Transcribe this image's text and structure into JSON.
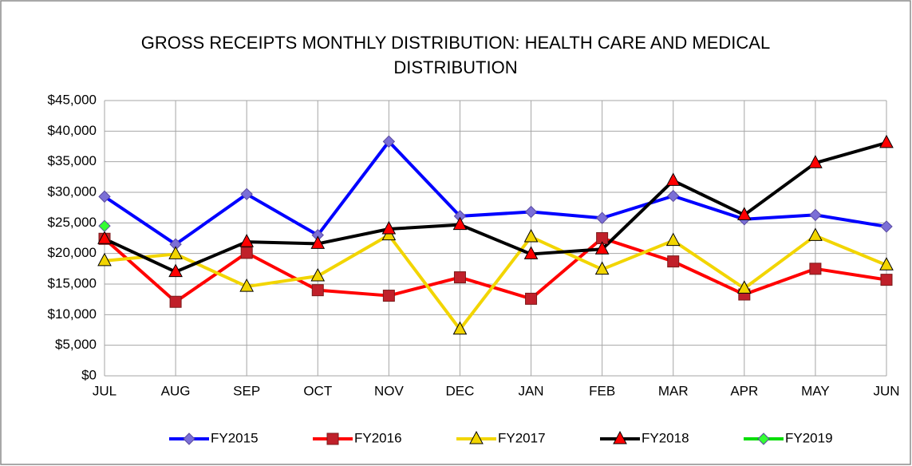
{
  "chart_data": {
    "type": "line",
    "title": "GROSS RECEIPTS MONTHLY DISTRIBUTION:  HEALTH CARE AND MEDICAL DISTRIBUTION",
    "categories": [
      "JUL",
      "AUG",
      "SEP",
      "OCT",
      "NOV",
      "DEC",
      "JAN",
      "FEB",
      "MAR",
      "APR",
      "MAY",
      "JUN"
    ],
    "series": [
      {
        "name": "FY2015",
        "color": "#0000ff",
        "marker": "diamond",
        "marker_color": "#7b6fd6",
        "values": [
          29300,
          21500,
          29700,
          23000,
          38300,
          26100,
          26800,
          25800,
          29400,
          25600,
          26300,
          24400
        ]
      },
      {
        "name": "FY2016",
        "color": "#ff0000",
        "marker": "square",
        "marker_color": "#c0202a",
        "values": [
          22400,
          12100,
          20100,
          14000,
          13100,
          16100,
          12600,
          22500,
          18700,
          13300,
          17500,
          15700
        ]
      },
      {
        "name": "FY2017",
        "color": "#f2d500",
        "marker": "triangle",
        "marker_color": "#f2d500",
        "values": [
          18800,
          19900,
          14600,
          16300,
          23000,
          7600,
          22700,
          17400,
          22100,
          14300,
          22900,
          18100
        ]
      },
      {
        "name": "FY2018",
        "color": "#000000",
        "marker": "triangle",
        "marker_color": "#ff0000",
        "values": [
          22400,
          17000,
          21900,
          21600,
          24000,
          24700,
          19900,
          20700,
          31900,
          26300,
          34800,
          38100
        ]
      },
      {
        "name": "FY2019",
        "color": "#00dd00",
        "marker": "diamond",
        "marker_color": "#33ff33",
        "values": [
          24500,
          null,
          null,
          null,
          null,
          null,
          null,
          null,
          null,
          null,
          null,
          null
        ]
      }
    ],
    "ylim": [
      0,
      45000
    ],
    "yticks": [
      {
        "value": 0,
        "label": "$0"
      },
      {
        "value": 5000,
        "label": "$5,000"
      },
      {
        "value": 10000,
        "label": "$10,000"
      },
      {
        "value": 15000,
        "label": "$15,000"
      },
      {
        "value": 20000,
        "label": "$20,000"
      },
      {
        "value": 25000,
        "label": "$25,000"
      },
      {
        "value": 30000,
        "label": "$30,000"
      },
      {
        "value": 35000,
        "label": "$35,000"
      },
      {
        "value": 40000,
        "label": "$40,000"
      },
      {
        "value": 45000,
        "label": "$45,000"
      }
    ],
    "grid": true,
    "legend": "bottom"
  }
}
